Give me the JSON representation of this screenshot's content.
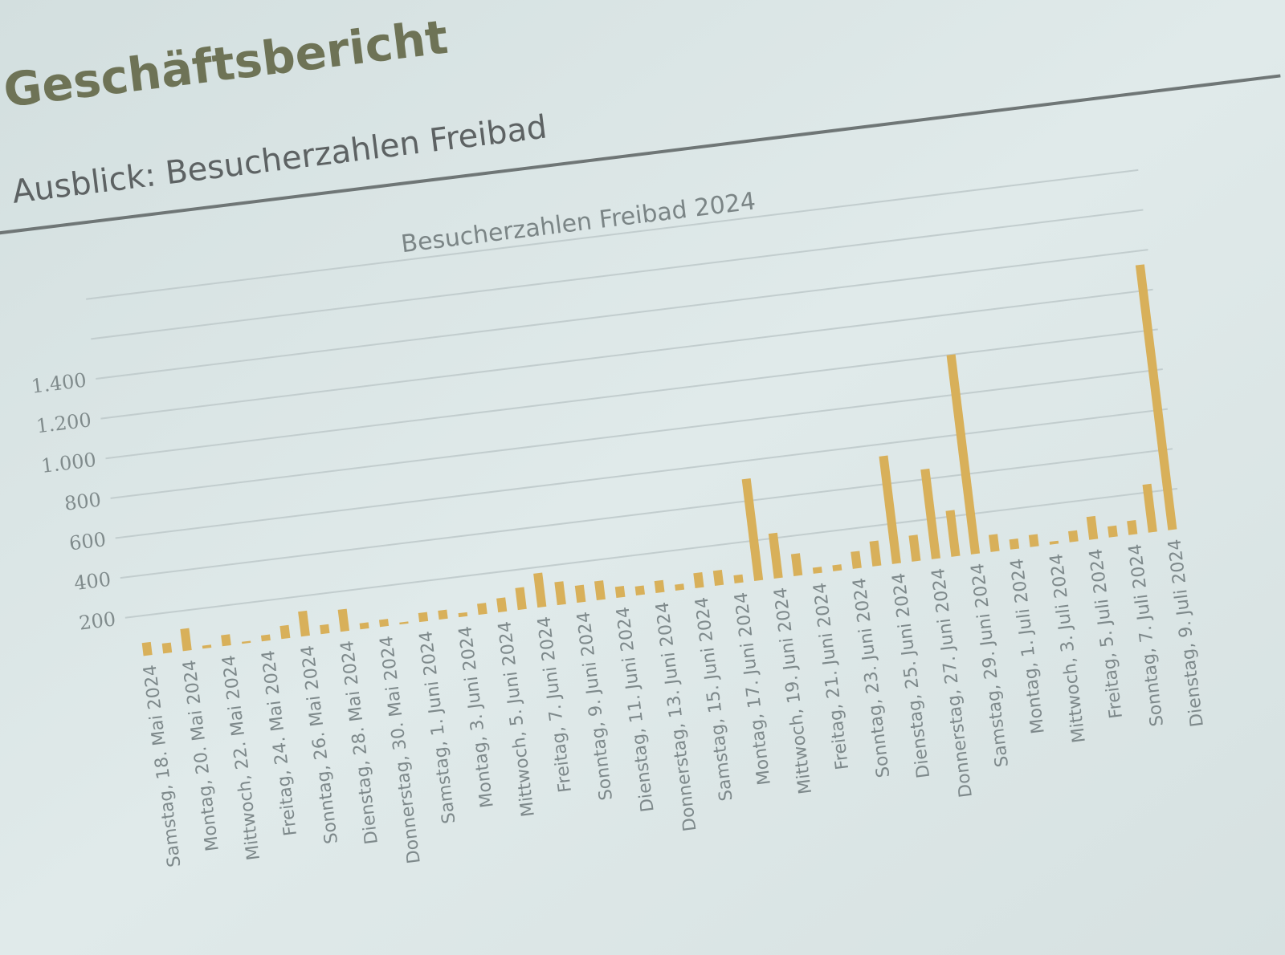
{
  "slide": {
    "title": "Geschäftsbericht",
    "subtitle": "Ausblick: Besucherzahlen Freibad",
    "accent_color": "#d2ad55",
    "background_color": "#dce7e7"
  },
  "chart_data": {
    "type": "bar",
    "title": "Besucherzahlen Freibad 2024",
    "xlabel": "",
    "ylabel": "",
    "ylim": [
      0,
      1800
    ],
    "grid": true,
    "legend": "none",
    "bar_color": "#d8b05a",
    "y_tick_values": [
      200,
      400,
      600,
      800,
      1000,
      1200,
      1400
    ],
    "y_tick_labels": [
      "200",
      "400",
      "600",
      "800",
      "1.000",
      "1.200",
      "1.400"
    ],
    "x_tick_labels": [
      "Samstag, 18. Mai 2024",
      "Montag, 20. Mai 2024",
      "Mittwoch, 22. Mai 2024",
      "Freitag, 24. Mai 2024",
      "Sonntag, 26. Mai 2024",
      "Dienstag, 28. Mai 2024",
      "Donnerstag, 30. Mai 2024",
      "Samstag, 1. Juni 2024",
      "Montag, 3. Juni 2024",
      "Mittwoch, 5. Juni 2024",
      "Freitag, 7. Juni 2024",
      "Sonntag, 9. Juni 2024",
      "Dienstag, 11. Juni 2024",
      "Donnerstag, 13. Juni 2024",
      "Samstag, 15. Juni 2024",
      "Montag, 17. Juni 2024",
      "Mittwoch, 19. Juni 2024",
      "Freitag, 21. Juni 2024",
      "Sonntag, 23. Juni 2024",
      "Dienstag, 25. Juni 2024",
      "Donnerstag, 27. Juni 2024",
      "Samstag, 29. Juni 2024",
      "Montag, 1. Juli 2024",
      "Mittwoch, 3. Juli 2024",
      "Freitag, 5. Juli 2024",
      "Sonntag, 7. Juli 2024",
      "Dienstag, 9. Juli 2024"
    ],
    "values": [
      65,
      50,
      110,
      15,
      55,
      10,
      30,
      65,
      125,
      45,
      110,
      30,
      35,
      10,
      45,
      45,
      20,
      55,
      70,
      110,
      170,
      115,
      85,
      95,
      55,
      45,
      60,
      30,
      75,
      75,
      40,
      510,
      225,
      110,
      30,
      30,
      85,
      125,
      540,
      130,
      450,
      230,
      1000,
      85,
      50,
      60,
      15,
      55,
      115,
      55,
      70,
      240,
      1330
    ]
  }
}
